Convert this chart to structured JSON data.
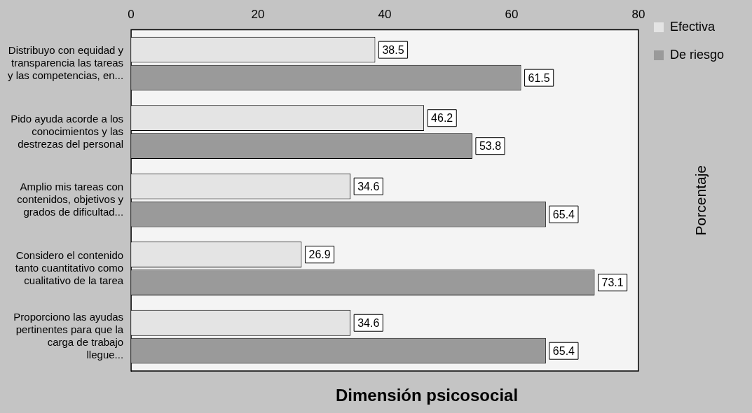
{
  "chart_data": {
    "type": "bar",
    "orientation": "horizontal",
    "xlabel": "Dimensión psicosocial",
    "y2label": "Porcentaje",
    "categories": [
      "Distribuyo con equidad y transparencia las tareas y las competencias, en...",
      "Pido ayuda acorde a los conocimientos y las destrezas del personal",
      "Amplio mis tareas con contenidos, objetivos y grados de dificultad...",
      "Considero el contenido tanto cuantitativo como cualitativo de la tarea",
      "Proporciono las ayudas pertinentes para que la carga de trabajo llegue..."
    ],
    "series": [
      {
        "name": "Efectiva",
        "color": "#e4e4e4",
        "values": [
          38.5,
          46.2,
          34.6,
          26.9,
          34.6
        ]
      },
      {
        "name": "De riesgo",
        "color": "#9a9a9a",
        "values": [
          61.5,
          53.8,
          65.4,
          73.1,
          65.4
        ]
      }
    ],
    "xlim": [
      0,
      80
    ],
    "xticks": [
      0,
      20,
      40,
      60,
      80
    ],
    "grid": false,
    "legend": "top right",
    "data_labels": true
  }
}
